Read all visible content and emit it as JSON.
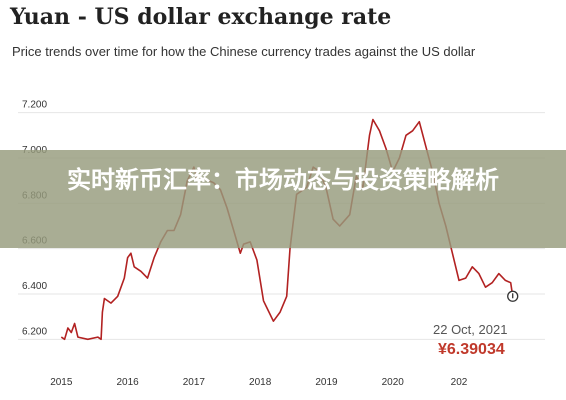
{
  "title": "Yuan - US dollar exchange rate",
  "subtitle": "Price trends over time for how the Chinese currency trades against the US dollar",
  "banner": "实时新币汇率：市场动态与投资策略解析",
  "annotation": {
    "date": "22 Oct, 2021",
    "value": "¥6.39034"
  },
  "colors": {
    "line": "#b22222",
    "grid": "#e6e6e6",
    "banner": "#969b7d",
    "value": "#c0392b"
  },
  "chart_data": {
    "type": "line",
    "title": "Yuan - US dollar exchange rate",
    "subtitle": "Price trends over time for how the Chinese currency trades against the US dollar",
    "x_ticks": [
      "2015",
      "2016",
      "2017",
      "2018",
      "2019",
      "2020",
      "202"
    ],
    "y_ticks": [
      "6.200",
      "6.400",
      "6.600",
      "6.800",
      "7.000",
      "7.200"
    ],
    "ylim": [
      6.1,
      7.3
    ],
    "xlim": [
      2014.95,
      2021.95
    ],
    "grid": "horizontal",
    "series": [
      {
        "values": [
          [
            2015.0,
            6.21
          ],
          [
            2015.05,
            6.2
          ],
          [
            2015.1,
            6.25
          ],
          [
            2015.15,
            6.23
          ],
          [
            2015.2,
            6.27
          ],
          [
            2015.25,
            6.21
          ],
          [
            2015.4,
            6.2
          ],
          [
            2015.55,
            6.21
          ],
          [
            2015.6,
            6.2
          ],
          [
            2015.62,
            6.32
          ],
          [
            2015.65,
            6.38
          ],
          [
            2015.75,
            6.36
          ],
          [
            2015.85,
            6.39
          ],
          [
            2015.95,
            6.47
          ],
          [
            2016.0,
            6.56
          ],
          [
            2016.05,
            6.58
          ],
          [
            2016.1,
            6.52
          ],
          [
            2016.2,
            6.5
          ],
          [
            2016.3,
            6.47
          ],
          [
            2016.4,
            6.56
          ],
          [
            2016.5,
            6.63
          ],
          [
            2016.6,
            6.68
          ],
          [
            2016.7,
            6.68
          ],
          [
            2016.8,
            6.75
          ],
          [
            2016.9,
            6.9
          ],
          [
            2017.0,
            6.96
          ],
          [
            2017.05,
            6.9
          ],
          [
            2017.15,
            6.91
          ],
          [
            2017.3,
            6.89
          ],
          [
            2017.4,
            6.86
          ],
          [
            2017.5,
            6.78
          ],
          [
            2017.6,
            6.68
          ],
          [
            2017.7,
            6.58
          ],
          [
            2017.75,
            6.62
          ],
          [
            2017.85,
            6.63
          ],
          [
            2017.95,
            6.55
          ],
          [
            2018.05,
            6.37
          ],
          [
            2018.1,
            6.34
          ],
          [
            2018.2,
            6.28
          ],
          [
            2018.3,
            6.32
          ],
          [
            2018.4,
            6.39
          ],
          [
            2018.45,
            6.6
          ],
          [
            2018.55,
            6.84
          ],
          [
            2018.7,
            6.87
          ],
          [
            2018.8,
            6.96
          ],
          [
            2018.9,
            6.94
          ],
          [
            2019.0,
            6.86
          ],
          [
            2019.1,
            6.73
          ],
          [
            2019.2,
            6.7
          ],
          [
            2019.35,
            6.75
          ],
          [
            2019.45,
            6.92
          ],
          [
            2019.55,
            6.87
          ],
          [
            2019.65,
            7.1
          ],
          [
            2019.7,
            7.17
          ],
          [
            2019.8,
            7.12
          ],
          [
            2019.9,
            7.04
          ],
          [
            2020.0,
            6.94
          ],
          [
            2020.1,
            7.0
          ],
          [
            2020.2,
            7.1
          ],
          [
            2020.3,
            7.12
          ],
          [
            2020.4,
            7.16
          ],
          [
            2020.5,
            7.05
          ],
          [
            2020.6,
            6.94
          ],
          [
            2020.7,
            6.8
          ],
          [
            2020.8,
            6.7
          ],
          [
            2020.9,
            6.58
          ],
          [
            2021.0,
            6.46
          ],
          [
            2021.1,
            6.47
          ],
          [
            2021.2,
            6.52
          ],
          [
            2021.3,
            6.49
          ],
          [
            2021.4,
            6.43
          ],
          [
            2021.5,
            6.45
          ],
          [
            2021.6,
            6.49
          ],
          [
            2021.7,
            6.46
          ],
          [
            2021.78,
            6.45
          ],
          [
            2021.81,
            6.39
          ]
        ]
      }
    ]
  }
}
